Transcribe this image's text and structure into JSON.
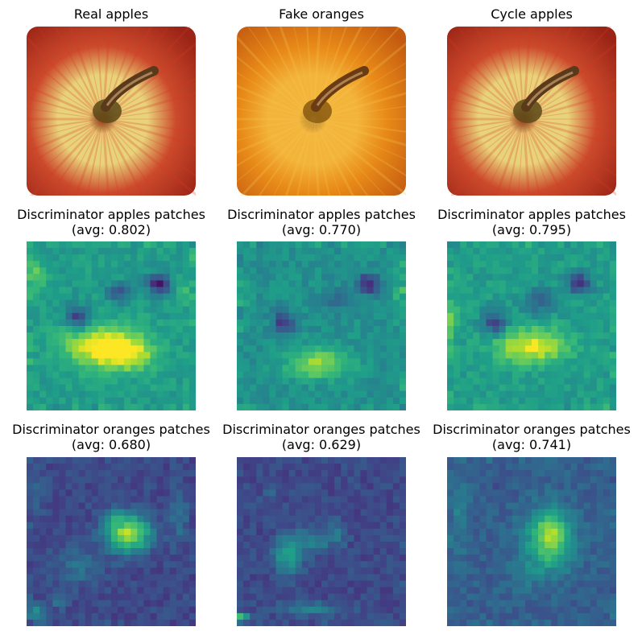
{
  "figure": {
    "rows": [
      {
        "panels": [
          {
            "id": "real-apples",
            "title": "Real apples",
            "kind": "apple",
            "palette": "apple-red"
          },
          {
            "id": "fake-oranges",
            "title": "Fake oranges",
            "kind": "apple",
            "palette": "orange"
          },
          {
            "id": "cycle-apples",
            "title": "Cycle apples",
            "kind": "apple",
            "palette": "apple-red"
          }
        ]
      },
      {
        "panels": [
          {
            "id": "disc-apples-real",
            "title": "Discriminator apples patches",
            "subtitle": "(avg: 0.802)",
            "kind": "heatmap"
          },
          {
            "id": "disc-apples-fake",
            "title": "Discriminator apples patches",
            "subtitle": "(avg: 0.770)",
            "kind": "heatmap"
          },
          {
            "id": "disc-apples-cycle",
            "title": "Discriminator apples patches",
            "subtitle": "(avg: 0.795)",
            "kind": "heatmap"
          }
        ]
      },
      {
        "panels": [
          {
            "id": "disc-oranges-real",
            "title": "Discriminator oranges patches",
            "subtitle": "(avg: 0.680)",
            "kind": "heatmap"
          },
          {
            "id": "disc-oranges-fake",
            "title": "Discriminator oranges patches",
            "subtitle": "(avg: 0.629)",
            "kind": "heatmap"
          },
          {
            "id": "disc-oranges-cycle",
            "title": "Discriminator oranges patches",
            "subtitle": "(avg: 0.741)",
            "kind": "heatmap"
          }
        ]
      }
    ]
  },
  "chart_data": [
    {
      "type": "heatmap",
      "title": "Discriminator apples patches",
      "subtitle": "(avg: 0.802)",
      "avg": 0.802,
      "colormap": "viridis",
      "axes": "off"
    },
    {
      "type": "heatmap",
      "title": "Discriminator apples patches",
      "subtitle": "(avg: 0.770)",
      "avg": 0.77,
      "colormap": "viridis",
      "axes": "off"
    },
    {
      "type": "heatmap",
      "title": "Discriminator apples patches",
      "subtitle": "(avg: 0.795)",
      "avg": 0.795,
      "colormap": "viridis",
      "axes": "off"
    },
    {
      "type": "heatmap",
      "title": "Discriminator oranges patches",
      "subtitle": "(avg: 0.680)",
      "avg": 0.68,
      "colormap": "viridis",
      "axes": "off"
    },
    {
      "type": "heatmap",
      "title": "Discriminator oranges patches",
      "subtitle": "(avg: 0.629)",
      "avg": 0.629,
      "colormap": "viridis",
      "axes": "off"
    },
    {
      "type": "heatmap",
      "title": "Discriminator oranges patches",
      "subtitle": "(avg: 0.741)",
      "avg": 0.741,
      "colormap": "viridis",
      "axes": "off"
    }
  ]
}
